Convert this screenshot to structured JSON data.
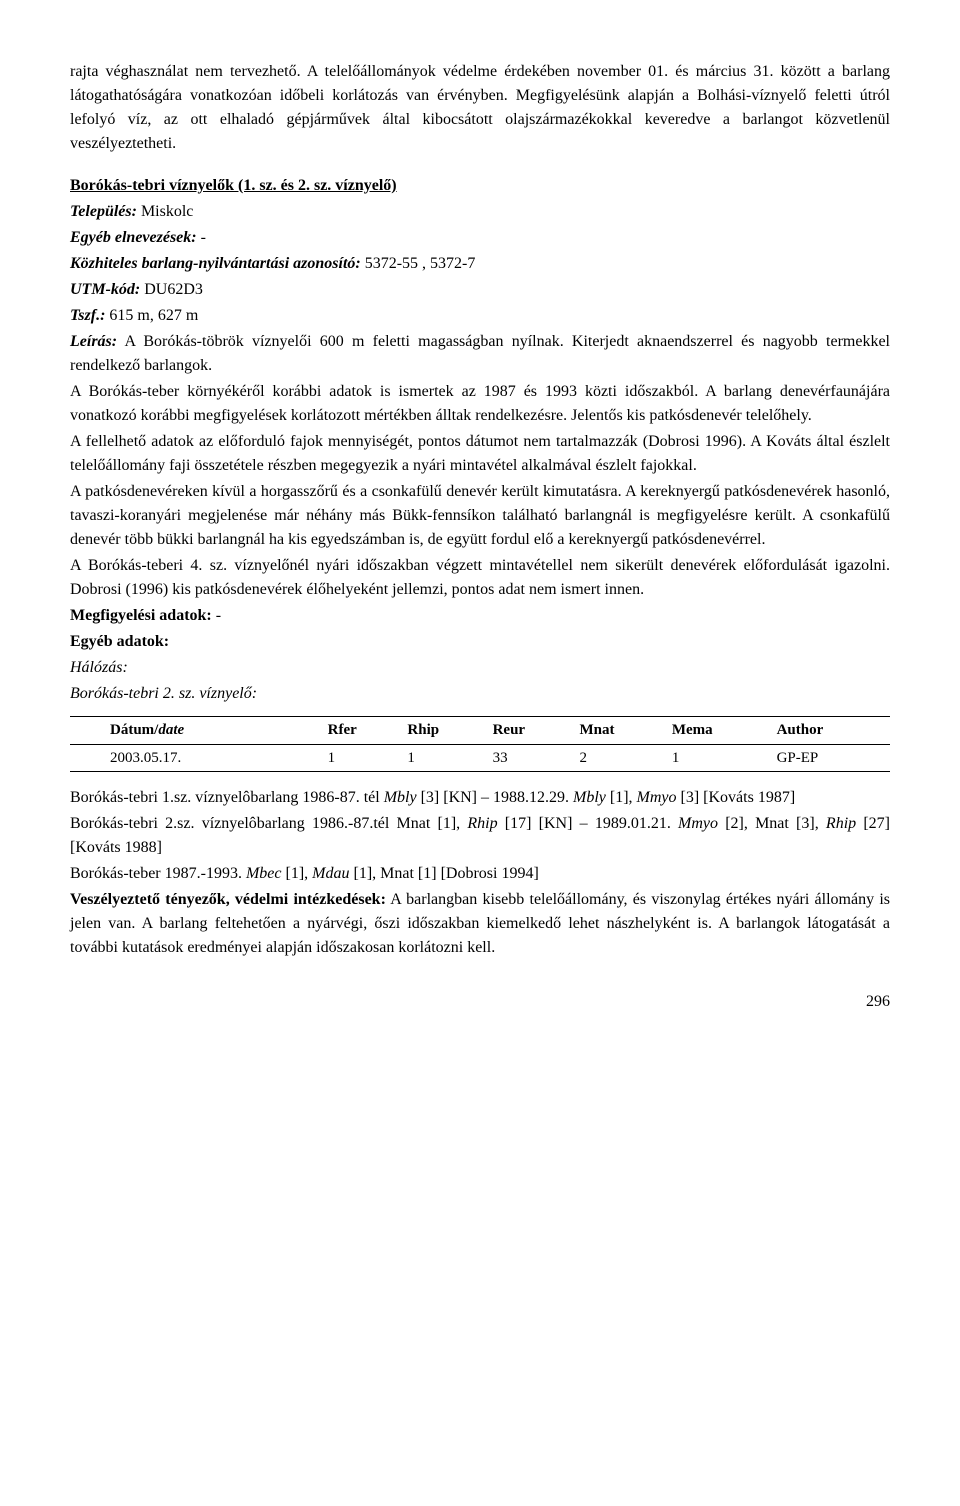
{
  "para1": "rajta véghasználat nem tervezhető. A telelőállományok védelme érdekében november 01. és március 31. között a barlang látogathatóságára vonatkozóan időbeli korlátozás van érvényben. Megfigyelésünk alapján a Bolhási-víznyelő feletti útról lefolyó víz, az ott elhaladó gépjárművek által kibocsátott olajszármazékokkal keveredve a barlangot közvetlenül veszélyeztetheti.",
  "section_title": "Borókás-tebri víznyelők (1. sz. és 2. sz. víznyelő)",
  "labels": {
    "telepules": "Település:",
    "egyeb_elnev": "Egyéb elnevezések:",
    "kozhiteles": "Közhiteles barlang-nyilvántartási azonosító:",
    "utm": "UTM-kód:",
    "tszf": "Tszf.:",
    "leiras": "Leírás:",
    "megfigy": "Megfigyelési adatok:",
    "egyeb_adat": "Egyéb adatok:",
    "halozas": "Hálózás:",
    "veszely": "Veszélyeztető tényezők, védelmi intézkedések:"
  },
  "values": {
    "telepules": " Miskolc",
    "egyeb_elnev": " -",
    "kozhiteles": " 5372-55 , 5372-7",
    "utm": " DU62D3",
    "tszf": " 615 m, 627 m",
    "megfigy": " -"
  },
  "leiras_body": " A Borókás-töbrök víznyelői 600 m feletti magasságban nyílnak. Kiterjedt aknaendszerrel és nagyobb termekkel rendelkező barlangok.",
  "para_a": "A Borókás-teber környékéről korábbi adatok is ismertek az 1987 és 1993 közti időszakból. A barlang denevérfaunájára vonatkozó korábbi megfigyelések korlátozott mértékben álltak rendelkezésre. Jelentős kis patkósdenevér telelőhely.",
  "para_b": "A fellelhető adatok az előforduló fajok mennyiségét, pontos dátumot nem tartalmazzák (Dobrosi 1996). A Kováts által észlelt telelőállomány faji összetétele részben megegyezik a nyári mintavétel alkalmával észlelt fajokkal.",
  "para_c": "A patkósdenevéreken kívül a horgasszőrű és a csonkafülű denevér került kimutatásra. A kereknyergű patkósdenevérek hasonló, tavaszi-koranyári megjelenése már néhány más Bükk-fennsíkon található barlangnál is megfigyelésre került. A csonkafülű denevér több bükki barlangnál ha kis egyedszámban is, de együtt fordul elő a kereknyergű patkósdenevérrel.",
  "para_d": "A Borókás-teberi 4. sz. víznyelőnél nyári időszakban végzett mintavétellel nem sikerült denevérek előfordulását igazolni. Dobrosi (1996) kis patkósdenevérek élőhelyeként jellemzi, pontos adat nem ismert innen.",
  "halozas_sub": "Borókás-tebri 2. sz. víznyelő:",
  "table": {
    "headers": [
      "Dátum/",
      "date",
      "Rfer",
      "Rhip",
      "Reur",
      "Mnat",
      "Mema",
      "Author"
    ],
    "row": [
      "2003.05.17.",
      "1",
      "1",
      "33",
      "2",
      "1",
      "GP-EP"
    ]
  },
  "ref1a": "Borókás-tebri 1.sz. víznyelôbarlang 1986-87. tél ",
  "ref1b": "Mbly",
  "ref1c": " [3] [KN] – 1988.12.29. ",
  "ref1d": "Mbly",
  "ref1e": " [1], ",
  "ref1f": "Mmyo",
  "ref1g": " [3] [Kováts 1987]",
  "ref2a": "Borókás-tebri 2.sz. víznyelôbarlang 1986.-87.tél Mnat [1], ",
  "ref2b": "Rhip",
  "ref2c": " [17] [KN] – 1989.01.21. ",
  "ref2d": "Mmyo",
  "ref2e": " [2], Mnat [3], ",
  "ref2f": "Rhip",
  "ref2g": " [27] [Kováts 1988]",
  "ref3a": "Borókás-teber 1987.-1993. ",
  "ref3b": "Mbec",
  "ref3c": " [1], ",
  "ref3d": "Mdau",
  "ref3e": " [1], Mnat [1] [Dobrosi 1994]",
  "veszely_body": " A barlangban kisebb telelőállomány, és viszonylag értékes nyári állomány is jelen van. A barlang feltehetően a nyárvégi, őszi időszakban kiemelkedő lehet nászhelyként is. A barlangok látogatását a további kutatások eredményei alapján időszakosan korlátozni kell.",
  "page_number": "296"
}
